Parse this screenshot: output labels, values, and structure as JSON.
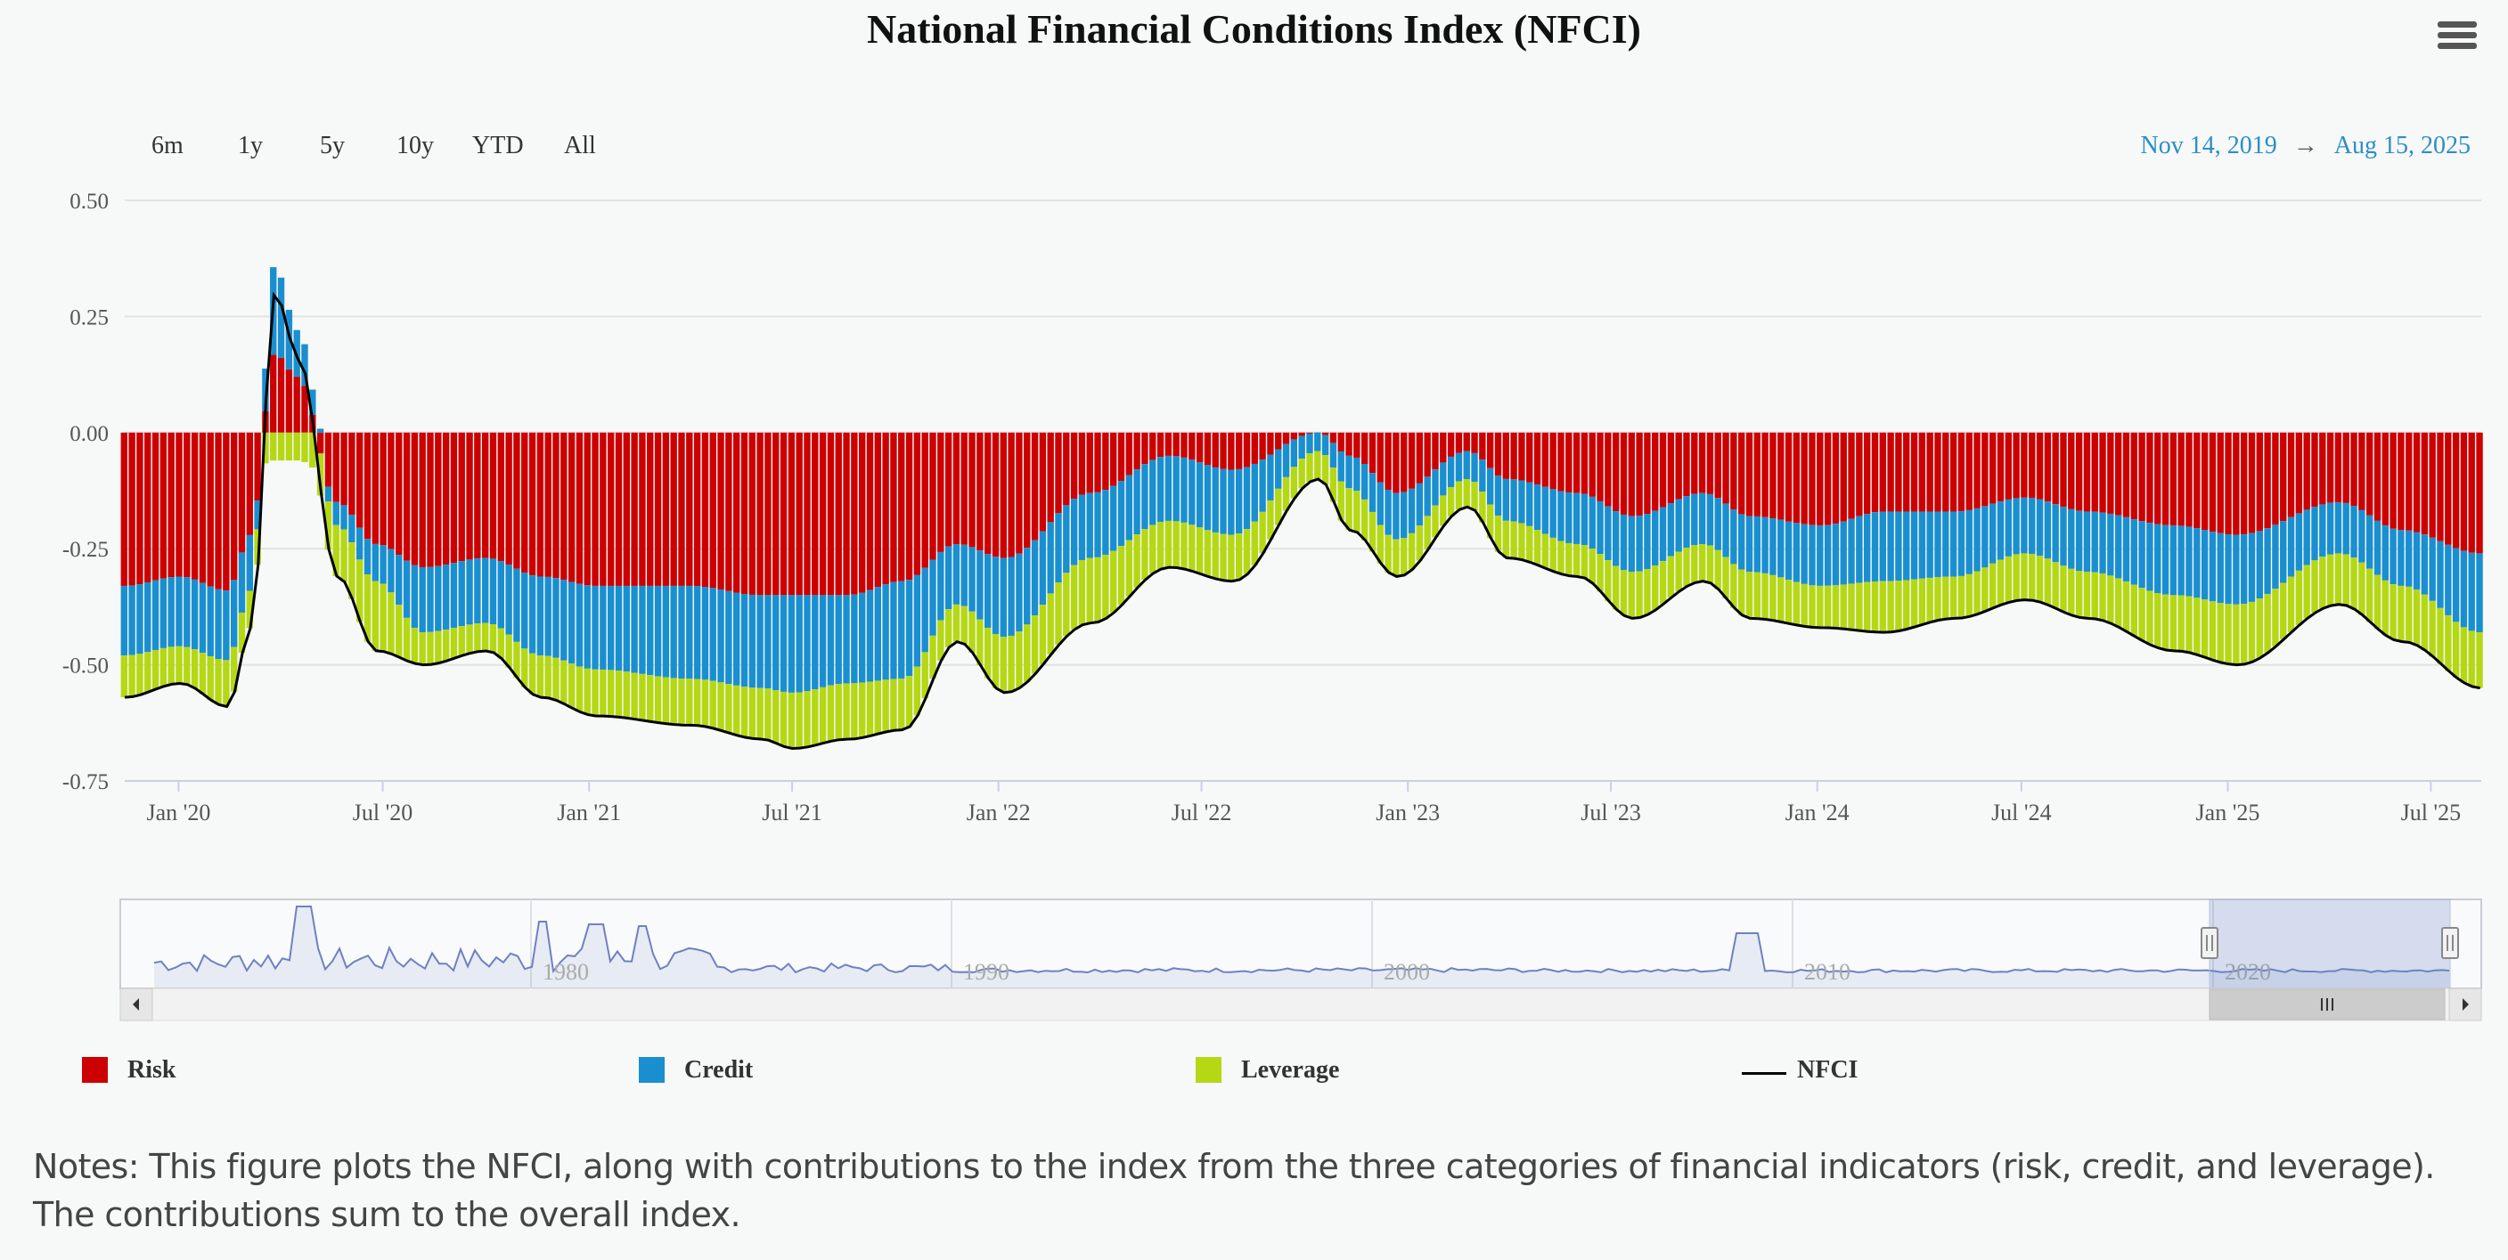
{
  "header": {
    "title": "National Financial Conditions Index (NFCI)",
    "menu_icon": "hamburger-menu-icon"
  },
  "range_selector": {
    "buttons": [
      "6m",
      "1y",
      "5y",
      "10y",
      "YTD",
      "All"
    ],
    "from_date": "Nov 14, 2019",
    "arrow": "→",
    "to_date": "Aug 15, 2025"
  },
  "navigator": {
    "year_labels": [
      "1980",
      "1990",
      "2000",
      "2010",
      "2020"
    ]
  },
  "legend": {
    "items": [
      {
        "label": "Risk",
        "color": "#cc0000"
      },
      {
        "label": "Credit",
        "color": "#1a8fd0"
      },
      {
        "label": "Leverage",
        "color": "#b5d815"
      },
      {
        "label": "NFCI",
        "color": "#000000"
      }
    ]
  },
  "notes": "Notes: This figure plots the NFCI, along with contributions to the index from the three categories of financial indicators (risk, credit, and leverage). The contributions sum to the overall index.",
  "chart_data": {
    "type": "bar",
    "stacked": true,
    "title": "National Financial Conditions Index (NFCI)",
    "ylim": [
      -0.75,
      0.5
    ],
    "y_ticks": [
      "0.50",
      "0.25",
      "0.00",
      "-0.25",
      "-0.50",
      "-0.75"
    ],
    "x_ticks": [
      "Jan '20",
      "Jul '20",
      "Jan '21",
      "Jul '21",
      "Jan '22",
      "Jul '22",
      "Jan '23",
      "Jul '23",
      "Jan '24",
      "Jul '24",
      "Jan '25",
      "Jul '25"
    ],
    "grid": true,
    "legend_position": "bottom",
    "x_range": [
      "2019-11-14",
      "2025-08-15"
    ],
    "colors": {
      "Risk": "#cc0000",
      "Credit": "#1a8fd0",
      "Leverage": "#b5d815",
      "NFCI": "#000000"
    },
    "series_anchors": {
      "dates": [
        "2019-11-14",
        "2020-01-03",
        "2020-02-14",
        "2020-03-06",
        "2020-03-27",
        "2020-04-17",
        "2020-05-22",
        "2020-06-26",
        "2020-08-07",
        "2020-10-02",
        "2020-11-20",
        "2021-01-08",
        "2021-04-02",
        "2021-06-04",
        "2021-07-02",
        "2021-08-20",
        "2021-10-08",
        "2021-11-26",
        "2022-01-07",
        "2022-03-25",
        "2022-06-03",
        "2022-07-29",
        "2022-10-14",
        "2022-11-11",
        "2022-12-23",
        "2023-02-24",
        "2023-03-31",
        "2023-06-02",
        "2023-07-21",
        "2023-09-22",
        "2023-11-03",
        "2024-01-05",
        "2024-03-01",
        "2024-05-03",
        "2024-07-05",
        "2024-08-30",
        "2024-11-15",
        "2025-01-10",
        "2025-04-11",
        "2025-06-06",
        "2025-08-15"
      ],
      "risk": [
        -0.33,
        -0.31,
        -0.34,
        -0.22,
        0.17,
        0.12,
        -0.15,
        -0.24,
        -0.29,
        -0.27,
        -0.31,
        -0.33,
        -0.33,
        -0.35,
        -0.35,
        -0.35,
        -0.32,
        -0.24,
        -0.27,
        -0.13,
        -0.05,
        -0.08,
        0.0,
        -0.05,
        -0.13,
        -0.04,
        -0.1,
        -0.13,
        -0.18,
        -0.13,
        -0.18,
        -0.2,
        -0.17,
        -0.17,
        -0.14,
        -0.17,
        -0.2,
        -0.22,
        -0.15,
        -0.21,
        -0.26
      ],
      "credit": [
        -0.15,
        -0.15,
        -0.15,
        -0.12,
        0.19,
        0.1,
        -0.05,
        -0.08,
        -0.14,
        -0.14,
        -0.17,
        -0.18,
        -0.2,
        -0.2,
        -0.21,
        -0.19,
        -0.21,
        -0.13,
        -0.17,
        -0.14,
        -0.14,
        -0.14,
        -0.04,
        -0.07,
        -0.1,
        -0.06,
        -0.09,
        -0.11,
        -0.12,
        -0.11,
        -0.12,
        -0.13,
        -0.15,
        -0.14,
        -0.12,
        -0.13,
        -0.15,
        -0.15,
        -0.11,
        -0.12,
        -0.17
      ],
      "leverage": [
        -0.09,
        -0.08,
        -0.1,
        -0.08,
        -0.06,
        -0.06,
        -0.11,
        -0.15,
        -0.07,
        -0.06,
        -0.09,
        -0.1,
        -0.1,
        -0.11,
        -0.12,
        -0.12,
        -0.11,
        -0.08,
        -0.12,
        -0.14,
        -0.1,
        -0.1,
        -0.06,
        -0.09,
        -0.08,
        -0.06,
        -0.08,
        -0.07,
        -0.1,
        -0.08,
        -0.1,
        -0.09,
        -0.11,
        -0.09,
        -0.1,
        -0.1,
        -0.12,
        -0.13,
        -0.11,
        -0.12,
        -0.12
      ]
    }
  }
}
